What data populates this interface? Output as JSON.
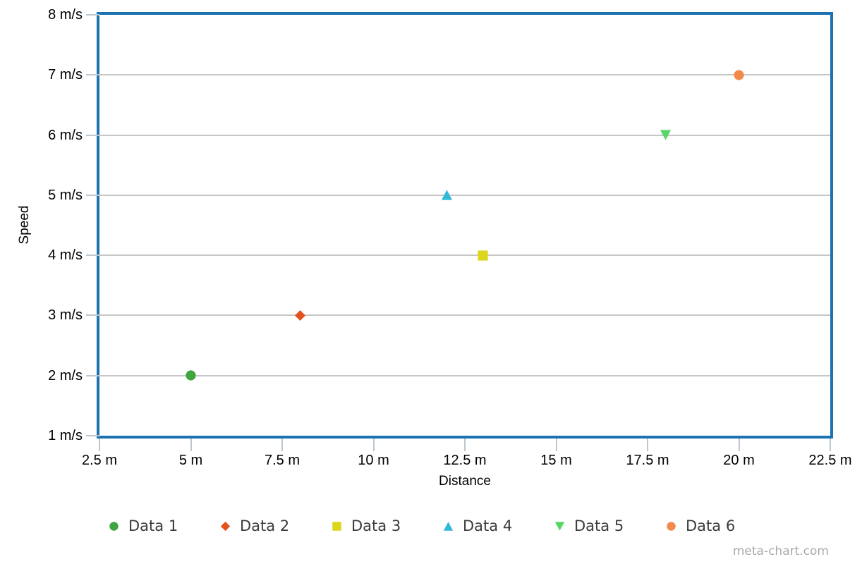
{
  "chart_data": {
    "type": "scatter",
    "title": "",
    "xlabel": "Distance",
    "ylabel": "Speed",
    "xlim": [
      2.5,
      22.5
    ],
    "ylim": [
      1,
      8
    ],
    "grid": "horizontal",
    "legend_position": "bottom",
    "x_ticks": [
      {
        "value": 2.5,
        "label": "2.5 m"
      },
      {
        "value": 5,
        "label": "5 m"
      },
      {
        "value": 7.5,
        "label": "7.5 m"
      },
      {
        "value": 10,
        "label": "10 m"
      },
      {
        "value": 12.5,
        "label": "12.5 m"
      },
      {
        "value": 15,
        "label": "15 m"
      },
      {
        "value": 17.5,
        "label": "17.5 m"
      },
      {
        "value": 20,
        "label": "20 m"
      },
      {
        "value": 22.5,
        "label": "22.5 m"
      }
    ],
    "y_ticks": [
      {
        "value": 8,
        "label": "8 m/s"
      },
      {
        "value": 7,
        "label": "7 m/s"
      },
      {
        "value": 6,
        "label": "6 m/s"
      },
      {
        "value": 5,
        "label": "5 m/s"
      },
      {
        "value": 4,
        "label": "4 m/s"
      },
      {
        "value": 3,
        "label": "3 m/s"
      },
      {
        "value": 2,
        "label": "2 m/s"
      },
      {
        "value": 1,
        "label": "1 m/s"
      }
    ],
    "series": [
      {
        "name": "Data 1",
        "marker": "circle",
        "color": "#3fa53c",
        "points": [
          [
            5,
            2
          ]
        ]
      },
      {
        "name": "Data 2",
        "marker": "diamond",
        "color": "#e2521d",
        "points": [
          [
            8,
            3
          ]
        ]
      },
      {
        "name": "Data 3",
        "marker": "square",
        "color": "#dcd61d",
        "points": [
          [
            13,
            4
          ]
        ]
      },
      {
        "name": "Data 4",
        "marker": "triangle-up",
        "color": "#30b9d9",
        "points": [
          [
            12,
            5
          ]
        ]
      },
      {
        "name": "Data 5",
        "marker": "triangle-down",
        "color": "#55d666",
        "points": [
          [
            18,
            6
          ]
        ]
      },
      {
        "name": "Data 6",
        "marker": "circle",
        "color": "#f28a4c",
        "points": [
          [
            20,
            7
          ]
        ]
      }
    ]
  },
  "watermark": "meta-chart.com",
  "colors": {
    "frame": "#1b72b0",
    "gridline": "#c6c6c6",
    "tick": "#bcc7cf",
    "axis_text": "#000000",
    "legend_text": "#3c3c3c",
    "watermark_text": "#a9a9a9"
  }
}
